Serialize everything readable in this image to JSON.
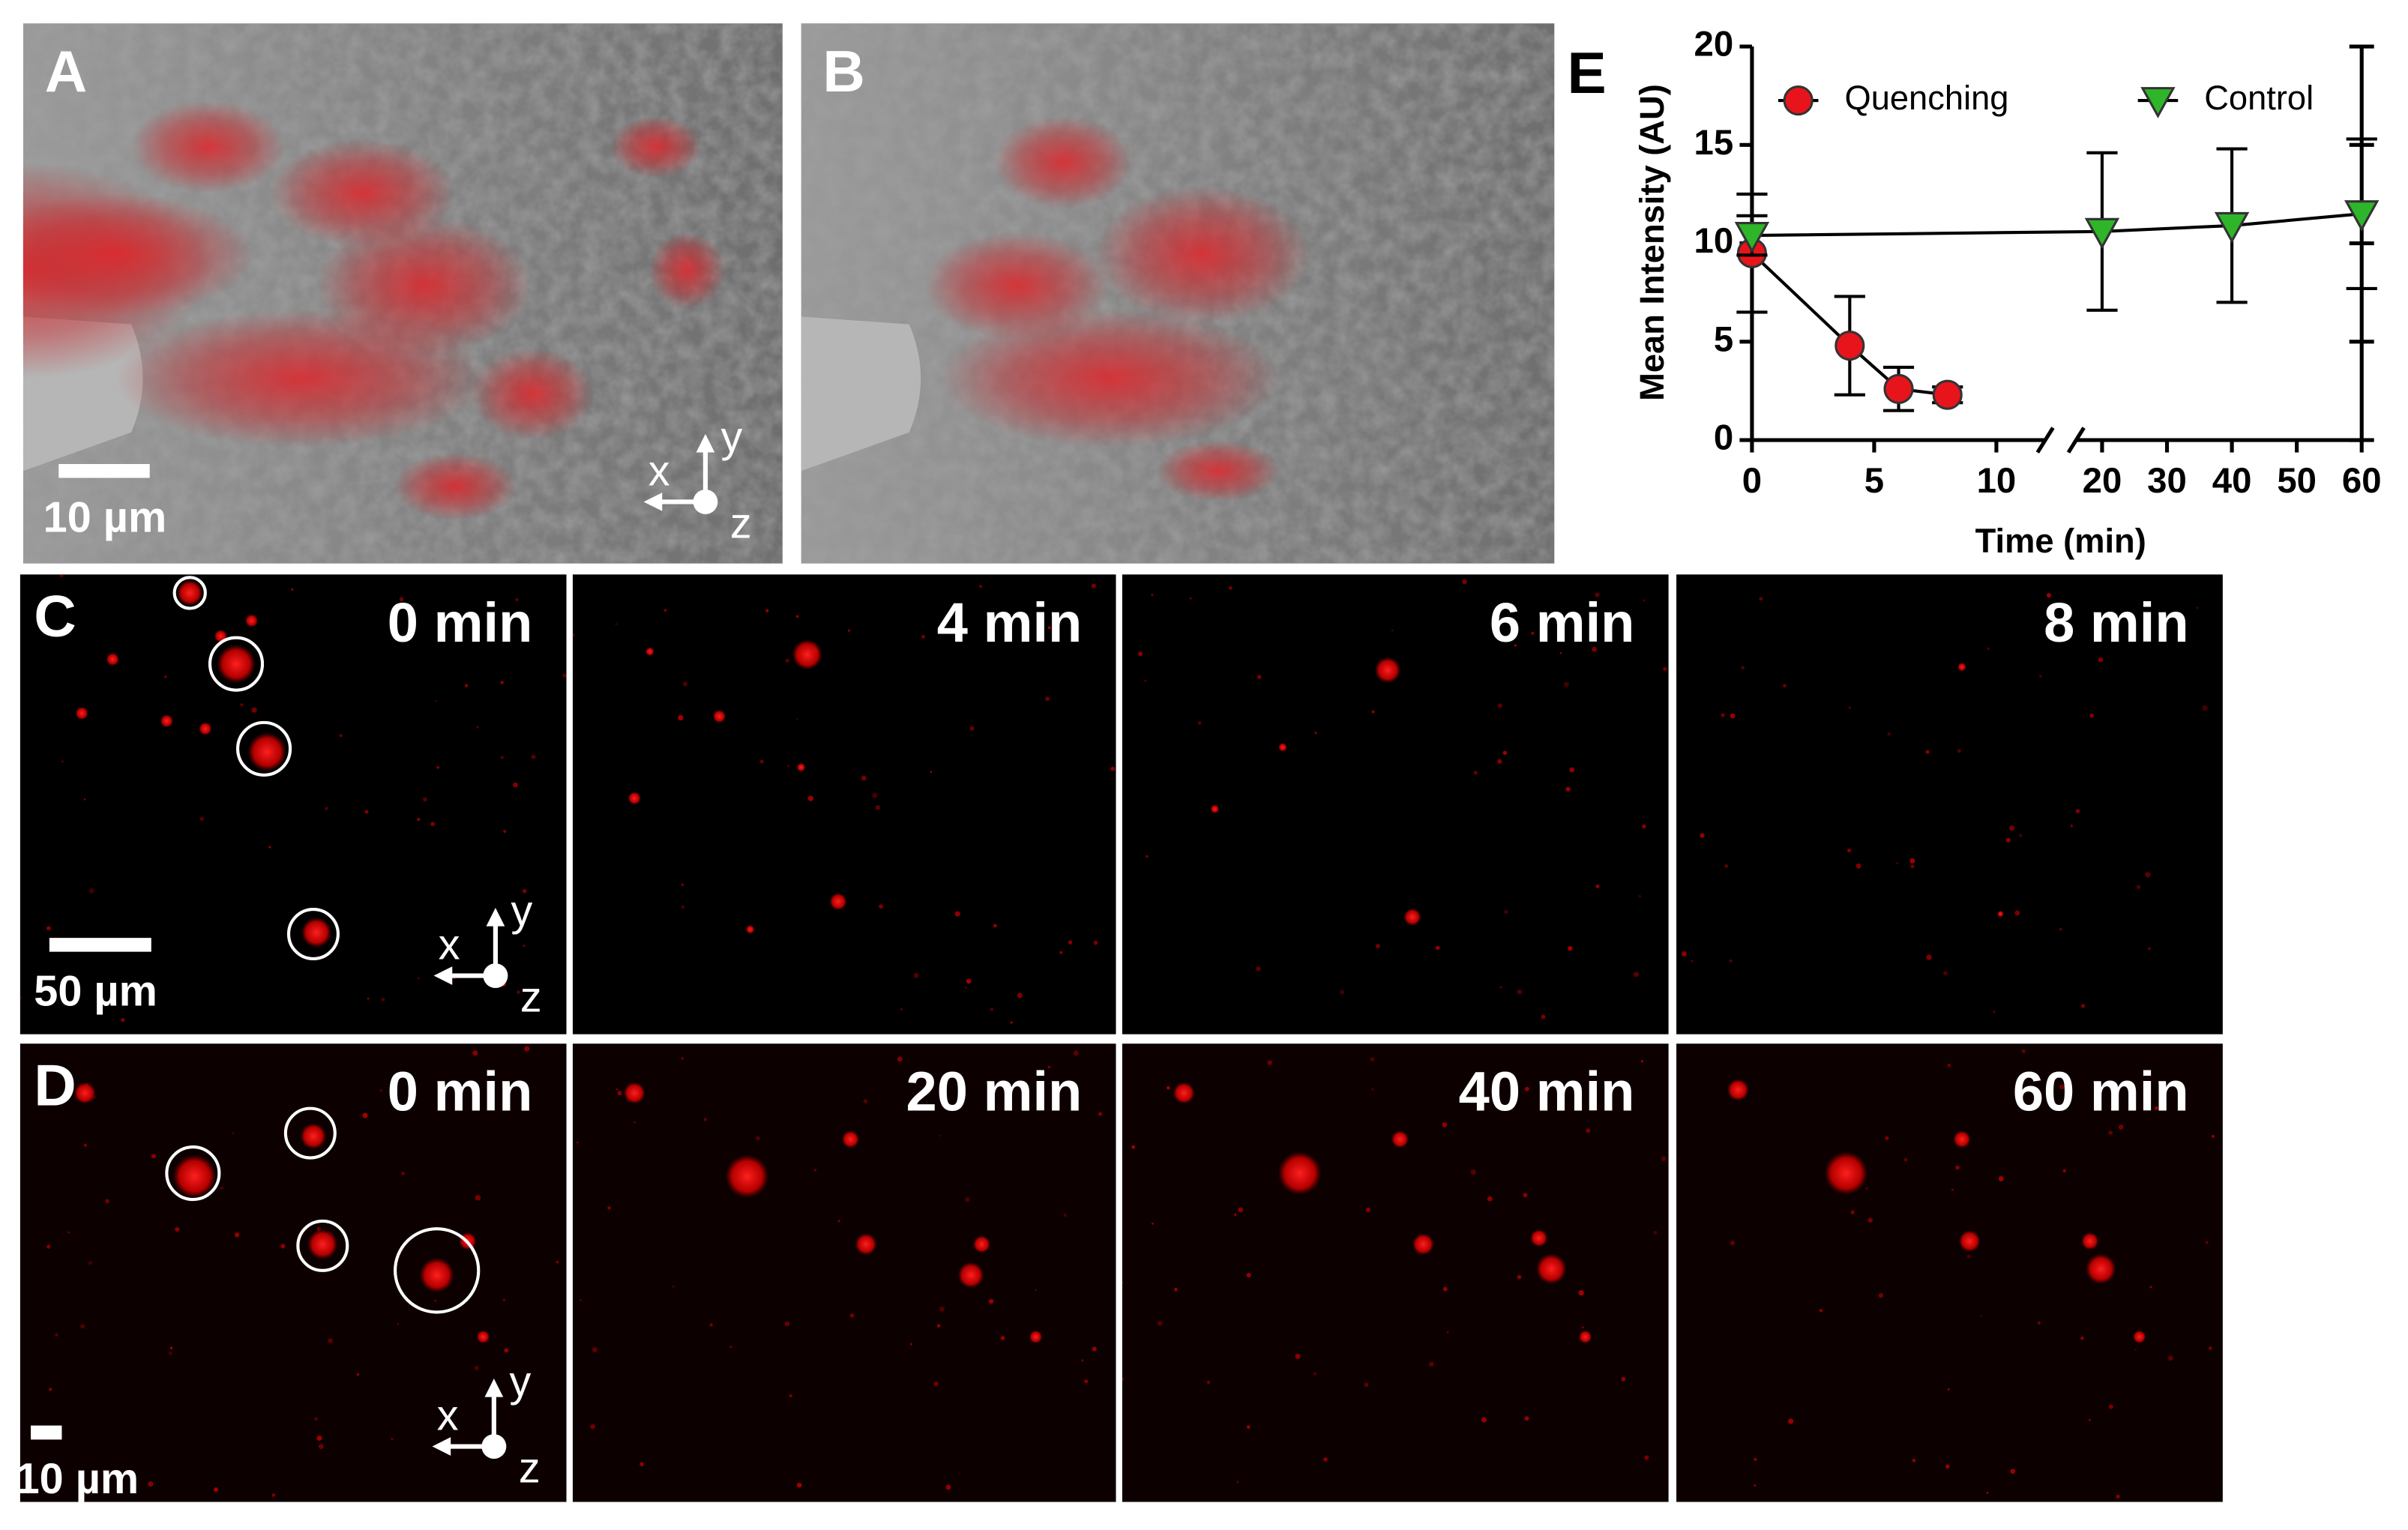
{
  "panels": {
    "A": {
      "label": "A",
      "scale_bar": "10 µm",
      "axes": [
        "x",
        "y",
        "z"
      ]
    },
    "B": {
      "label": "B"
    },
    "C": {
      "label": "C",
      "times": [
        "0 min",
        "4 min",
        "6 min",
        "8 min"
      ],
      "scale_bar": "50 µm",
      "axes": [
        "x",
        "y",
        "z"
      ]
    },
    "D": {
      "label": "D",
      "times": [
        "0 min",
        "20 min",
        "40 min",
        "60 min"
      ],
      "scale_bar": "10 µm",
      "axes": [
        "x",
        "y",
        "z"
      ]
    }
  },
  "chart_data": {
    "type": "line",
    "panel_label": "E",
    "y_label": "Mean Intensity (AU)",
    "x_label": "Time (min)",
    "ylim": [
      0,
      20
    ],
    "yticks": [
      0,
      5,
      10,
      15,
      20
    ],
    "xlim": [
      0,
      12
    ],
    "xticks": [
      0,
      5,
      10
    ],
    "x2lim": [
      16,
      60
    ],
    "x2ticks": [
      20,
      30,
      40,
      50,
      60
    ],
    "series": [
      {
        "name": "Quenching",
        "color": "#e8141b",
        "marker": "circle",
        "x": [
          0,
          4,
          6,
          8
        ],
        "values": [
          9.5,
          4.8,
          2.6,
          2.3
        ],
        "errors": [
          3.0,
          2.5,
          1.1,
          0.4
        ]
      },
      {
        "name": "Control",
        "color": "#2fb52a",
        "marker": "triangle",
        "x": [
          0,
          20,
          40,
          60
        ],
        "values": [
          10.4,
          10.6,
          10.9,
          11.5
        ],
        "errors": [
          1.0,
          4.0,
          3.9,
          3.8
        ]
      }
    ]
  }
}
